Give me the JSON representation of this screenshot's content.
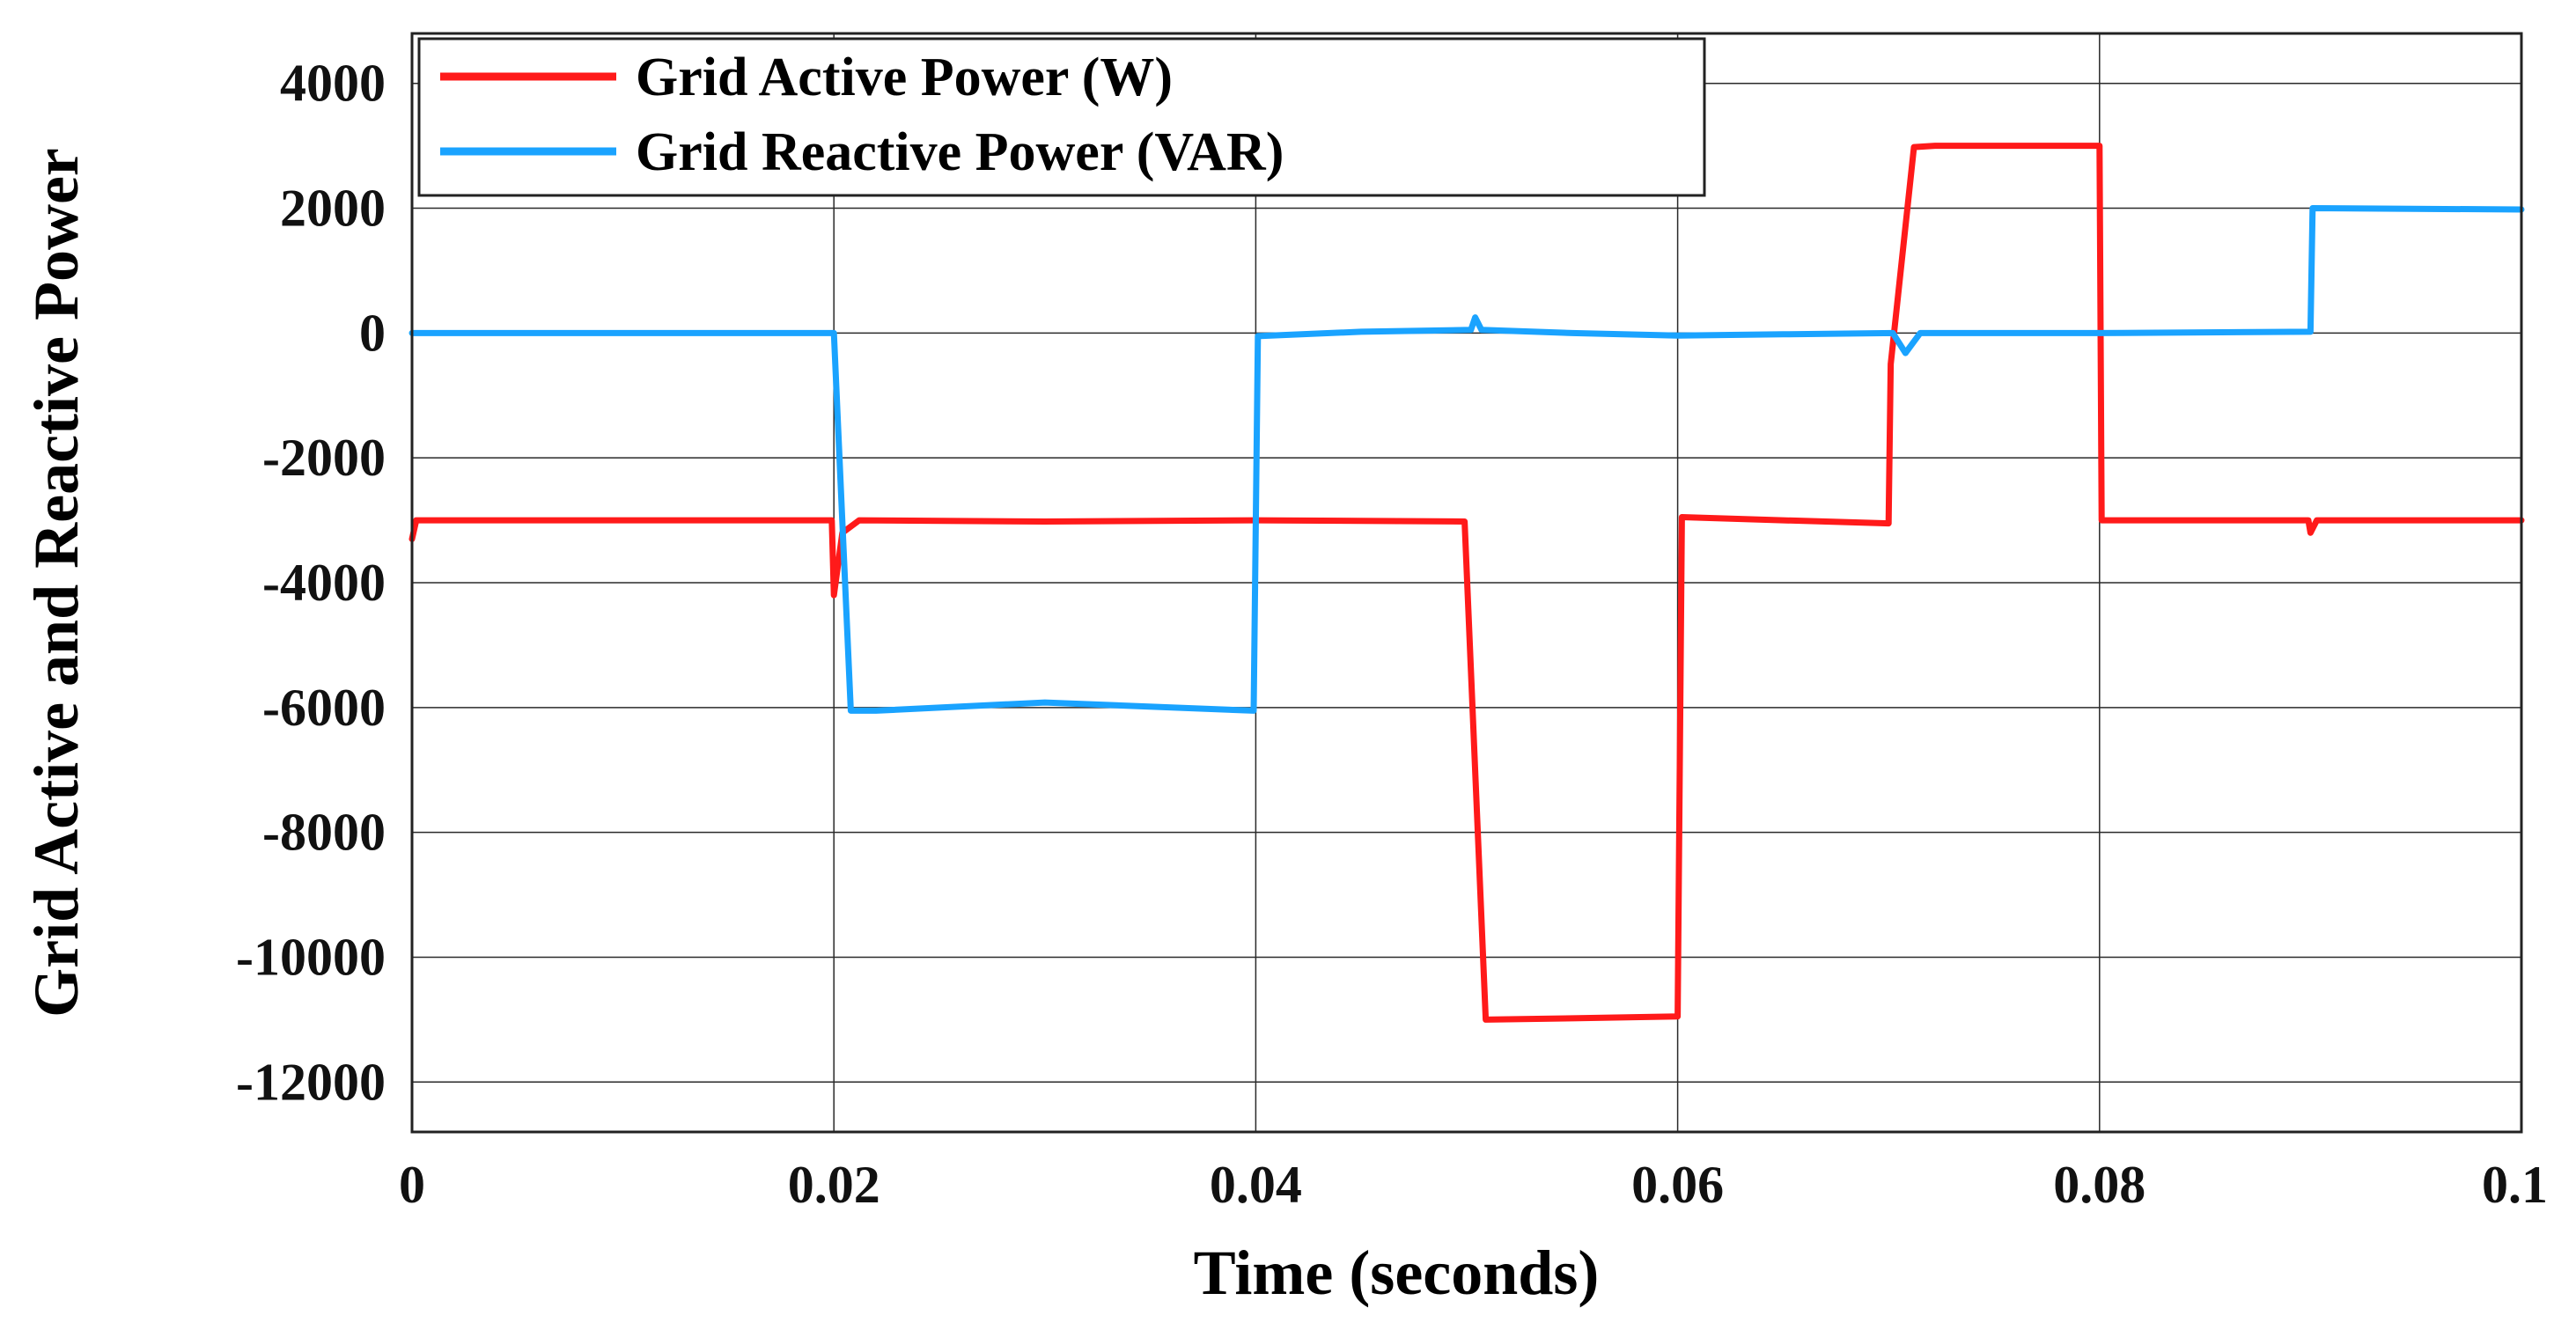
{
  "chart_data": {
    "type": "line",
    "title": "",
    "xlabel": "Time (seconds)",
    "ylabel": "Grid Active and Reactive Power",
    "xlim": [
      0,
      0.1
    ],
    "ylim": [
      -12800,
      4800
    ],
    "grid": true,
    "legend_position": "top-left",
    "x_ticks": [
      0,
      0.02,
      0.04,
      0.06,
      0.08,
      0.1
    ],
    "x_tick_labels": [
      "0",
      "0.02",
      "0.04",
      "0.06",
      "0.08",
      "0.1"
    ],
    "y_ticks": [
      4000,
      2000,
      0,
      -2000,
      -4000,
      -6000,
      -8000,
      -10000,
      -12000
    ],
    "y_tick_labels": [
      "4000",
      "2000",
      "0",
      "-2000",
      "-4000",
      "-6000",
      "-8000",
      "-10000",
      "-12000"
    ],
    "series": [
      {
        "name": "Grid Active Power (W)",
        "color": "#ff1a1a",
        "points": [
          [
            0,
            -3300
          ],
          [
            0.0002,
            -3000
          ],
          [
            0.0199,
            -3000
          ],
          [
            0.02,
            -4200
          ],
          [
            0.0204,
            -3200
          ],
          [
            0.0208,
            -3100
          ],
          [
            0.0212,
            -3000
          ],
          [
            0.03,
            -3020
          ],
          [
            0.04,
            -3000
          ],
          [
            0.0499,
            -3020
          ],
          [
            0.0509,
            -11000
          ],
          [
            0.055,
            -10980
          ],
          [
            0.06,
            -10950
          ],
          [
            0.0602,
            -2950
          ],
          [
            0.065,
            -3000
          ],
          [
            0.07,
            -3050
          ],
          [
            0.0701,
            -500
          ],
          [
            0.0712,
            2980
          ],
          [
            0.0722,
            3000
          ],
          [
            0.0795,
            3000
          ],
          [
            0.08,
            3000
          ],
          [
            0.0801,
            -3000
          ],
          [
            0.085,
            -3000
          ],
          [
            0.0899,
            -3000
          ],
          [
            0.09,
            -3200
          ],
          [
            0.0903,
            -3000
          ],
          [
            0.1,
            -3000
          ]
        ]
      },
      {
        "name": "Grid Reactive Power (VAR)",
        "color": "#1aa3ff",
        "points": [
          [
            0,
            0
          ],
          [
            0.02,
            0
          ],
          [
            0.0208,
            -6050
          ],
          [
            0.022,
            -6050
          ],
          [
            0.03,
            -5920
          ],
          [
            0.0399,
            -6050
          ],
          [
            0.0401,
            -50
          ],
          [
            0.045,
            20
          ],
          [
            0.0502,
            50
          ],
          [
            0.0504,
            250
          ],
          [
            0.0507,
            50
          ],
          [
            0.055,
            0
          ],
          [
            0.06,
            -40
          ],
          [
            0.065,
            -20
          ],
          [
            0.0702,
            0
          ],
          [
            0.0708,
            -320
          ],
          [
            0.0715,
            0
          ],
          [
            0.08,
            0
          ],
          [
            0.09,
            20
          ],
          [
            0.0901,
            2000
          ],
          [
            0.1,
            1980
          ]
        ]
      }
    ]
  }
}
